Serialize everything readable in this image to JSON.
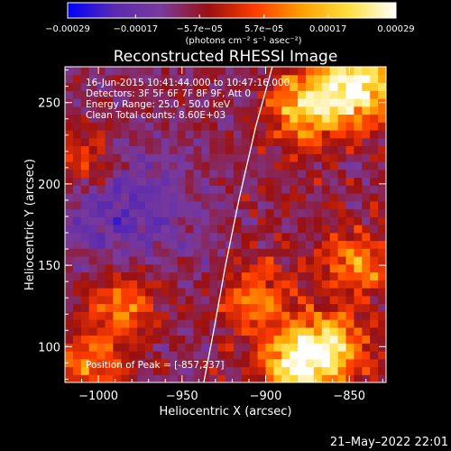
{
  "chart_data": {
    "type": "heatmap",
    "title": "Reconstructed RHESSI Image",
    "xlabel": "Heliocentric X (arcsec)",
    "ylabel": "Heliocentric Y (arcsec)",
    "x_range": [
      -1020,
      -828
    ],
    "y_range": [
      78,
      272
    ],
    "x_ticks": [
      -1000,
      -950,
      -900,
      -850
    ],
    "x_tick_labels": [
      "−1000",
      "−950",
      "−900",
      "−850"
    ],
    "y_ticks": [
      100,
      150,
      200,
      250
    ],
    "y_tick_labels": [
      "100",
      "150",
      "200",
      "250"
    ],
    "colorbar": {
      "range": [
        -0.00029,
        0.00029
      ],
      "ticks": [
        -0.00029,
        -0.00017,
        -5.7e-05,
        5.7e-05,
        0.00017,
        0.00029
      ],
      "tick_labels": [
        "−0.00029",
        "−0.00017",
        "−5.7e−05",
        "5.7e−05",
        "0.00017",
        "0.00029"
      ],
      "units_label": "(photons cm⁻² s⁻¹ asec⁻²)",
      "colormap": [
        "#0000ff",
        "#5a2ab0",
        "#7a3a9a",
        "#9a1010",
        "#ff3c00",
        "#ffa000",
        "#ffe040",
        "#ffffff"
      ]
    },
    "info_lines": [
      "16-Jun-2015 10:41:44.000 to 10:47:16.000",
      "Detectors: 3F 5F 6F 7F 8F 9F, Att 0",
      "Energy Range: 25.0 - 50.0 keV",
      "Clean     Total counts: 8.60E+03"
    ],
    "peak_label": "Position of Peak = [-857,237]",
    "peak_position": [
      -857,
      237
    ],
    "limb_curve": {
      "x": [
        -937,
        -931,
        -924,
        -916,
        -906,
        -896
      ],
      "y": [
        78,
        110,
        150,
        190,
        235,
        272
      ]
    },
    "bright_sources": [
      {
        "x": -845,
        "y": 260,
        "intensity": 1.0
      },
      {
        "x": -875,
        "y": 248,
        "intensity": 0.8
      },
      {
        "x": -880,
        "y": 90,
        "intensity": 0.95
      },
      {
        "x": -860,
        "y": 100,
        "intensity": 0.65
      },
      {
        "x": -845,
        "y": 150,
        "intensity": 0.45
      },
      {
        "x": -905,
        "y": 130,
        "intensity": 0.45
      },
      {
        "x": -985,
        "y": 125,
        "intensity": 0.5
      },
      {
        "x": -1005,
        "y": 90,
        "intensity": 0.45
      },
      {
        "x": -1010,
        "y": 215,
        "intensity": 0.35
      }
    ]
  },
  "footer": {
    "timestamp": "21–May–2022 22:01"
  }
}
